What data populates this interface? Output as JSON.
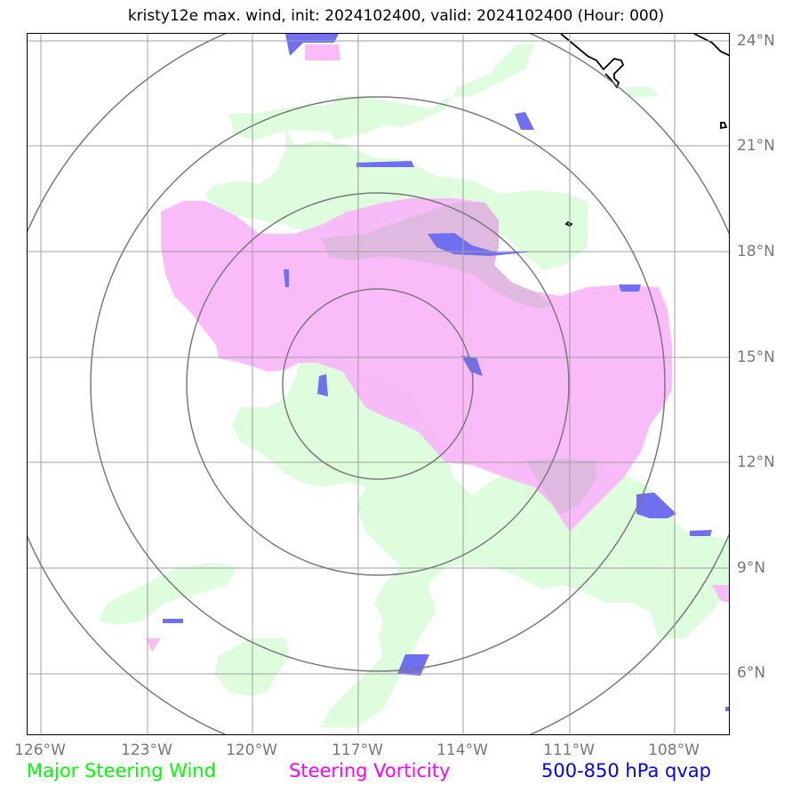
{
  "title": "kristy12e max. wind, init: 2024102400, valid: 2024102400 (Hour: 000)",
  "lon_ticks": [
    "126°W",
    "123°W",
    "120°W",
    "117°W",
    "114°W",
    "111°W",
    "108°W"
  ],
  "lat_ticks": [
    "24°N",
    "21°N",
    "18°N",
    "15°N",
    "12°N",
    "9°N",
    "6°N"
  ],
  "legend": {
    "steering_wind": "Major Steering Wind",
    "steering_vorticity": "Steering Vorticity",
    "qvap": "500-850 hPa qvap"
  },
  "colors": {
    "steering_wind": "#00ff00",
    "steering_vorticity": "#ff00ff",
    "qvap": "#0000ff",
    "wind_fill": "#ddfddd",
    "vorticity_fill": "#f9b6f9",
    "qvap_fill": "#6f6ff0",
    "grid": "#a0a0a0",
    "range_rings": "#7a7a7a"
  }
}
